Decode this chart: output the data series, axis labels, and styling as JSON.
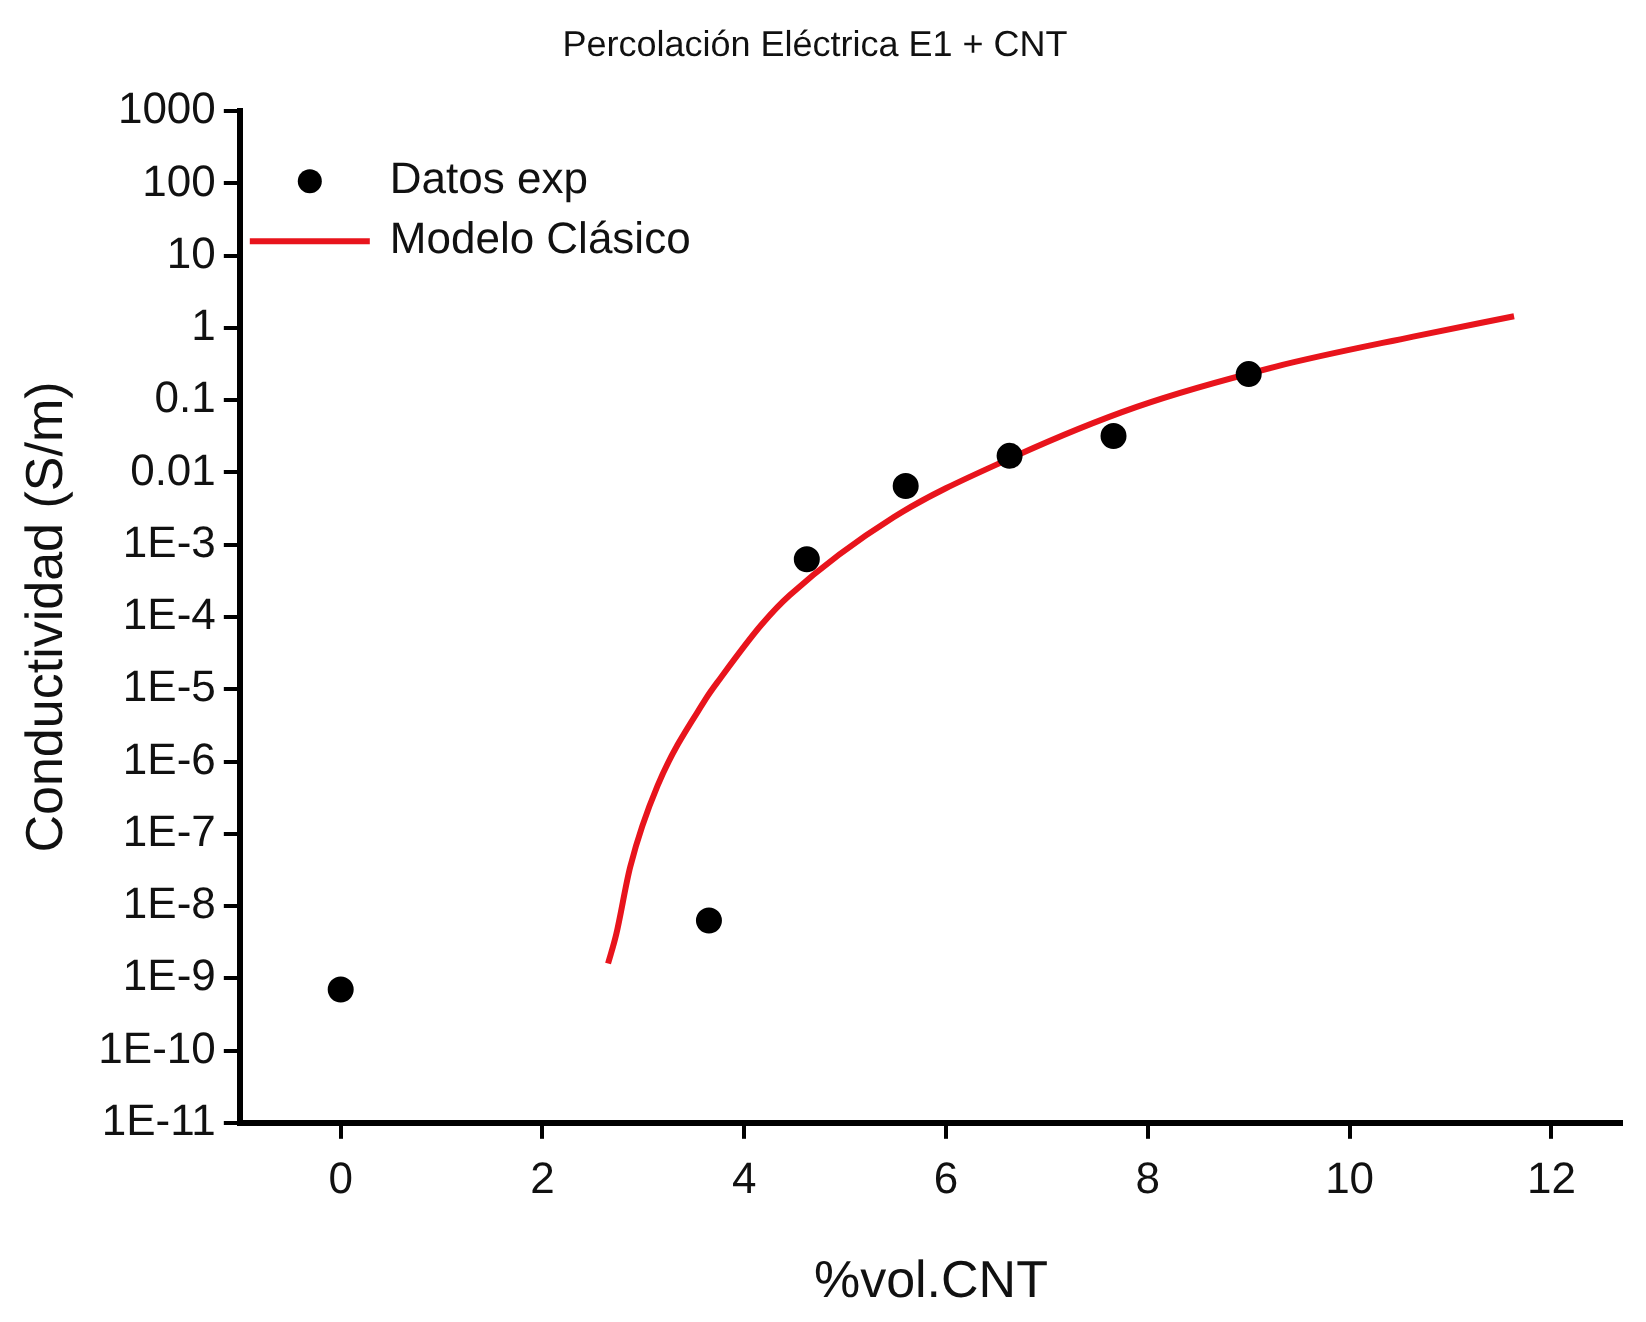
{
  "chart_data": {
    "type": "scatter",
    "title": "Percolación Eléctrica E1 + CNT",
    "xlabel": "%vol.CNT",
    "ylabel": "Conductividad (S/m)",
    "log": "y",
    "grid": false,
    "legend": "top left",
    "xlim": [
      -1,
      12.7
    ],
    "xticks": [
      0,
      2,
      4,
      6,
      8,
      10,
      12
    ],
    "ylim": [
      1e-11,
      1000
    ],
    "yticks": [
      1000,
      100,
      10,
      1,
      0.1,
      0.01,
      {
        "value": 0.001,
        "label": "1E-3"
      },
      {
        "value": 0.0001,
        "label": "1E-4"
      },
      {
        "value": 1e-05,
        "label": "1E-5"
      },
      {
        "value": 1e-06,
        "label": "1E-6"
      },
      {
        "value": 1e-07,
        "label": "1E-7"
      },
      {
        "value": 1e-08,
        "label": "1E-8"
      },
      {
        "value": 1e-09,
        "label": "1E-9"
      },
      {
        "value": 1e-10,
        "label": "1E-10"
      },
      {
        "value": 1e-11,
        "label": "1E-11"
      }
    ],
    "series": [
      {
        "name": "Datos exp",
        "type": "scatter",
        "marker": "circle",
        "color": "#000000",
        "x": [
          0,
          3.65,
          4.62,
          5.6,
          6.63,
          7.66,
          9.0
        ],
        "values": [
          7e-10,
          6.3e-09,
          0.00063,
          0.0065,
          0.017,
          0.032,
          0.23
        ]
      },
      {
        "name": "Modelo Clásico",
        "type": "line",
        "color": "#e8141c",
        "line_style": "solid",
        "x": [
          2.65,
          2.73,
          2.87,
          3.14,
          3.62,
          3.76,
          4.17,
          4.45,
          5.48,
          6.65,
          7.89,
          9.26,
          10.63,
          11.63
        ],
        "values": [
          1.6e-09,
          4e-09,
          3.5e-08,
          4.6e-07,
          7.4e-06,
          1.4e-05,
          7.8e-05,
          0.0002,
          0.0024,
          0.016,
          0.081,
          0.29,
          0.76,
          1.45
        ]
      }
    ]
  }
}
